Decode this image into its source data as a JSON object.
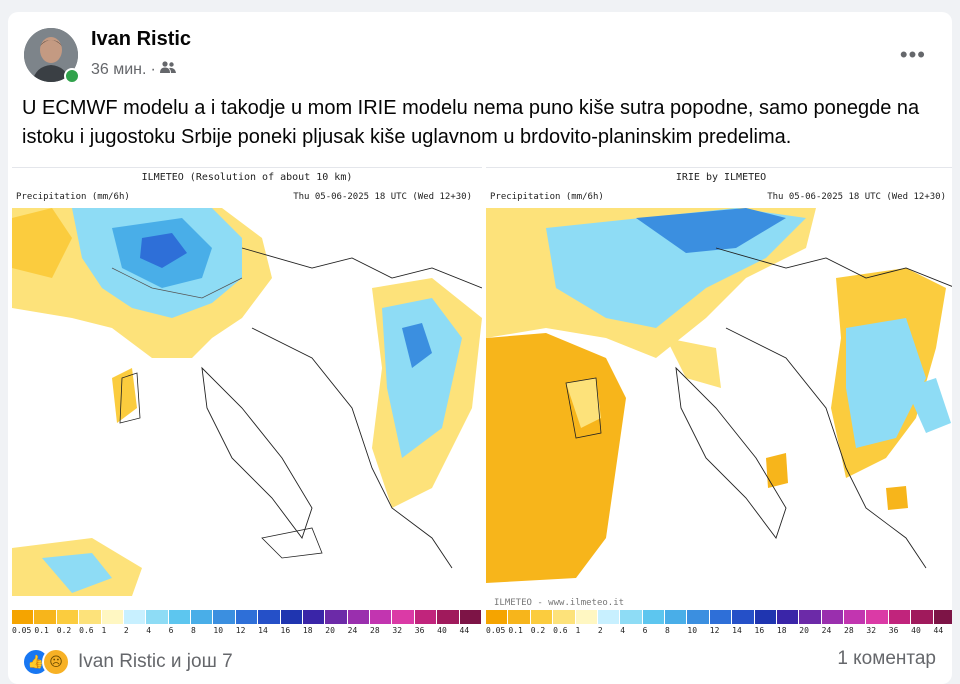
{
  "post": {
    "author": "Ivan Ristic",
    "time": "36 мин.",
    "separator": "·",
    "text": "U ECMWF modelu a i takodje u mom IRIE modelu nema puno kiše sutra popodne, samo ponegde na istoku i jugostoku Srbije poneki pljusak kiše uglavnom u brdovito-planinskim predelima."
  },
  "left_map": {
    "title": "ILMETEO (Resolution of about 10 km)",
    "label": "Precipitation (mm/6h)",
    "date": "Thu 05-06-2025 18 UTC (Wed 12+30)"
  },
  "right_map": {
    "title": "IRIE by ILMETEO",
    "label": "Precipitation (mm/6h)",
    "date": "Thu 05-06-2025 18 UTC (Wed 12+30)",
    "watermark": "ILMETEO - www.ilmeteo.it"
  },
  "scale": {
    "ticks": [
      "0.05",
      "0.1",
      "0.2",
      "0.6",
      "1",
      "2",
      "4",
      "6",
      "8",
      "10",
      "12",
      "14",
      "16",
      "18",
      "20",
      "24",
      "28",
      "32",
      "36",
      "40",
      "44"
    ],
    "colors": [
      "#f5a400",
      "#f7b51b",
      "#fbcc3e",
      "#fde27a",
      "#fff7c2",
      "#c8f0ff",
      "#8edcf5",
      "#5dc6ef",
      "#49aee8",
      "#3b8fe0",
      "#2e6fd8",
      "#2550c8",
      "#1f35b0",
      "#3a25a8",
      "#6c2aa8",
      "#9a2fae",
      "#c235b0",
      "#db3aa6",
      "#c1247c",
      "#a01a5c",
      "#7d1446"
    ]
  },
  "footer": {
    "reactors": "Ivan Ristic и још 7",
    "comments": "1 коментар"
  },
  "colors": {
    "accent": "#1877f2",
    "online": "#31a24c"
  }
}
